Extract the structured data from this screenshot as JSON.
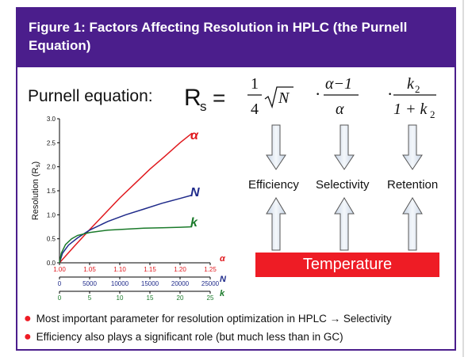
{
  "title": "Figure 1: Factors Affecting Resolution in HPLC (the Purnell Equation)",
  "purnell_label": "Purnell equation:",
  "equation": {
    "lhs": "R",
    "lhs_sub": "s",
    "eq": "=",
    "t1_num": "1",
    "t1_den": "4",
    "t1_root": "N",
    "t2_num": "α−1",
    "t2_den": "α",
    "t3_num": "k",
    "t3_num_sub": "2",
    "t3_den": "1 + k",
    "t3_den_sub": "2",
    "dot": "·"
  },
  "factors": [
    "Efficiency",
    "Selectivity",
    "Retention"
  ],
  "temperature_label": "Temperature",
  "colors": {
    "alpha": "#e0191e",
    "N": "#1f2a8a",
    "k": "#1a7a2a",
    "accent": "#4b1e8c"
  },
  "bullets": [
    "Most important parameter for resolution optimization in HPLC → Selectivity",
    "Efficiency also plays a significant role (but much less than in GC)"
  ],
  "chart_data": {
    "type": "line",
    "ylabel": "Resolution (R",
    "ylabel_sub": "s",
    "ylabel_close": ")",
    "ylim": [
      0,
      3.0
    ],
    "yticks": [
      "0.0",
      "0.5",
      "1.0",
      "1.5",
      "2.0",
      "2.5",
      "3.0"
    ],
    "x_axes": [
      {
        "name": "α",
        "ticks": [
          "1.00",
          "1.05",
          "1.10",
          "1.15",
          "1.20",
          "1.25"
        ],
        "range": [
          1.0,
          1.25
        ]
      },
      {
        "name": "N",
        "ticks": [
          "0",
          "5000",
          "10000",
          "15000",
          "20000",
          "25000"
        ],
        "range": [
          0,
          25000
        ]
      },
      {
        "name": "k",
        "ticks": [
          "0",
          "5",
          "10",
          "15",
          "20",
          "25"
        ],
        "range": [
          0,
          25
        ]
      }
    ],
    "series": [
      {
        "name": "α",
        "axis": 0,
        "x": [
          1.0,
          1.025,
          1.05,
          1.075,
          1.1,
          1.125,
          1.15,
          1.175,
          1.2,
          1.22
        ],
        "y": [
          0.0,
          0.35,
          0.69,
          1.02,
          1.35,
          1.65,
          1.95,
          2.22,
          2.5,
          2.7
        ]
      },
      {
        "name": "N",
        "axis": 1,
        "x": [
          0,
          500,
          1500,
          3000,
          5000,
          8000,
          11000,
          14000,
          17000,
          20000,
          22000
        ],
        "y": [
          0.0,
          0.2,
          0.37,
          0.52,
          0.68,
          0.86,
          1.0,
          1.12,
          1.24,
          1.34,
          1.41
        ]
      },
      {
        "name": "k",
        "axis": 2,
        "x": [
          0,
          0.3,
          1,
          2,
          3,
          5,
          8,
          11,
          14,
          17,
          20,
          22
        ],
        "y": [
          0.0,
          0.2,
          0.38,
          0.5,
          0.57,
          0.63,
          0.68,
          0.7,
          0.72,
          0.73,
          0.74,
          0.75
        ]
      }
    ]
  }
}
